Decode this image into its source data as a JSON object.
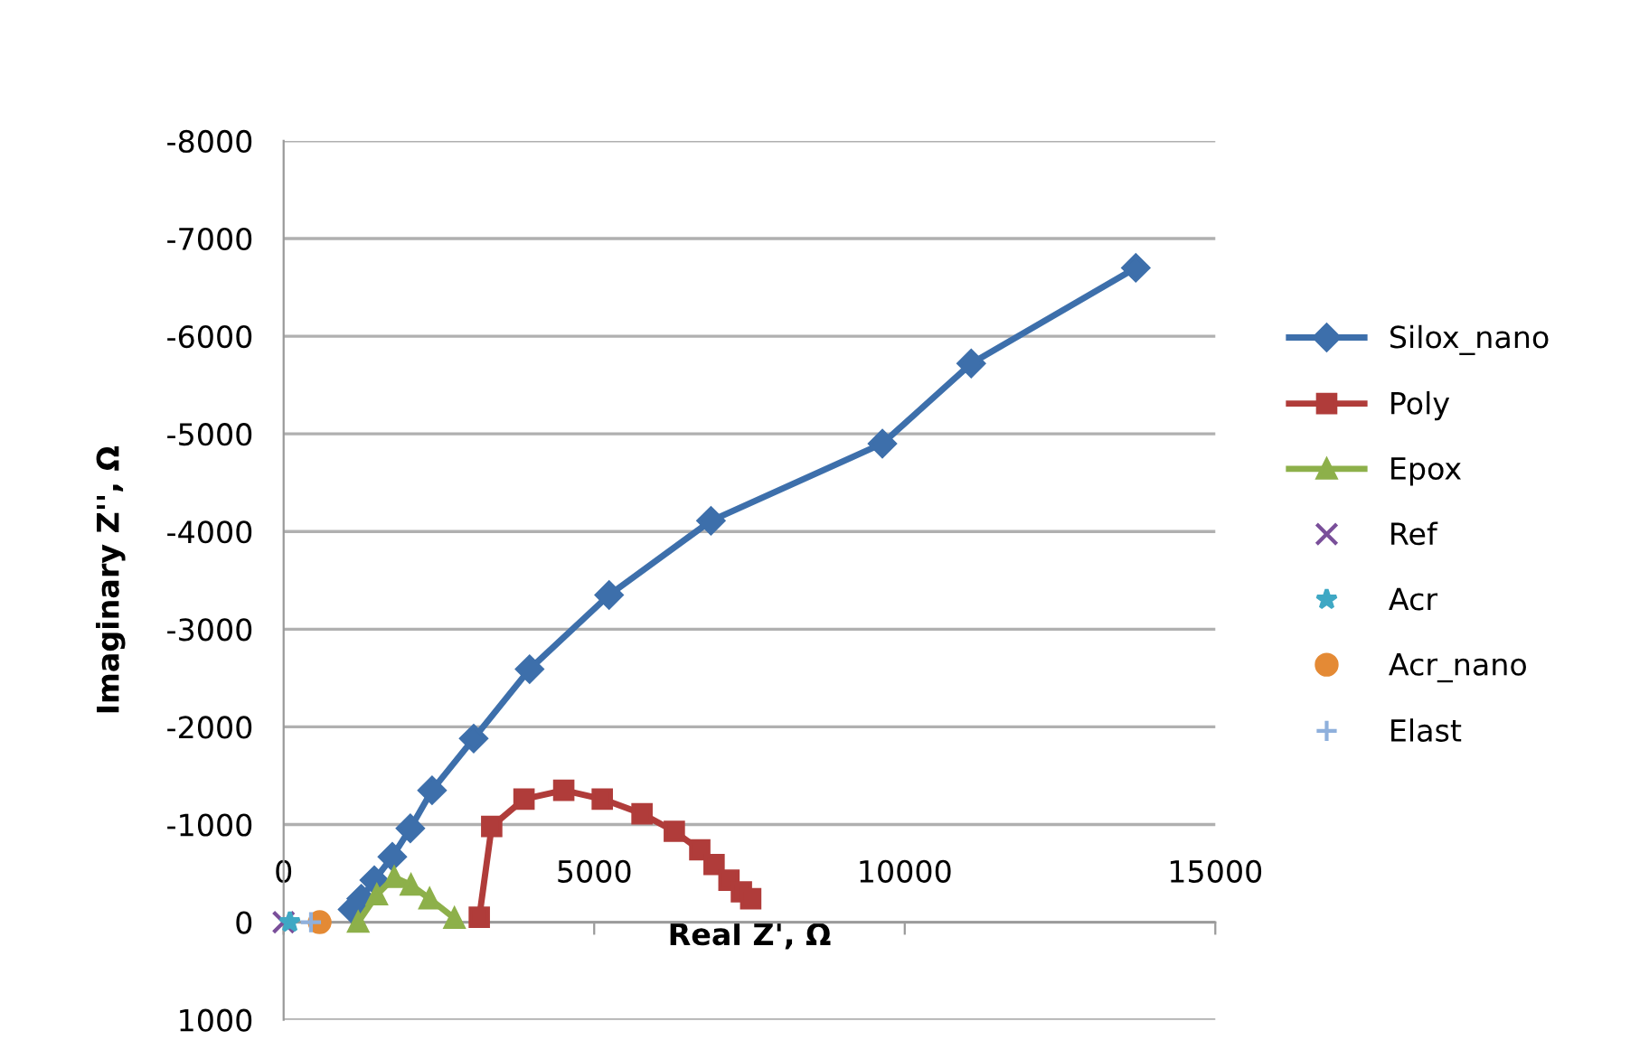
{
  "chart_data": {
    "type": "line",
    "xlabel": "Real Z', Ω",
    "ylabel": "Imaginary Z'', Ω",
    "xlim": [
      0,
      15000
    ],
    "xticks": [
      0,
      5000,
      10000,
      15000
    ],
    "ylim": [
      1000,
      -8000
    ],
    "yticks": [
      -8000,
      -7000,
      -6000,
      -5000,
      -4000,
      -3000,
      -2000,
      -1000,
      0,
      1000
    ],
    "grid": "y",
    "legend": "right",
    "series": [
      {
        "name": "Silox_nano",
        "color": "#3d6fab",
        "marker": "diamond",
        "x": [
          1110,
          1250,
          1460,
          1750,
          2040,
          2390,
          3060,
          3960,
          5240,
          6880,
          9640,
          11070,
          13720
        ],
        "values": [
          -130,
          -240,
          -430,
          -670,
          -960,
          -1350,
          -1880,
          -2590,
          -3350,
          -4110,
          -4900,
          -5720,
          -6700
        ]
      },
      {
        "name": "Poly",
        "color": "#b03c3a",
        "marker": "square",
        "x": [
          3150,
          3350,
          3870,
          4510,
          5130,
          5770,
          6290,
          6700,
          6930,
          7170,
          7370,
          7520
        ],
        "values": [
          -50,
          -980,
          -1260,
          -1350,
          -1260,
          -1110,
          -930,
          -740,
          -590,
          -430,
          -310,
          -240
        ]
      },
      {
        "name": "Epox",
        "color": "#8db04a",
        "marker": "triangle",
        "x": [
          1200,
          1500,
          1780,
          2050,
          2350,
          2750
        ],
        "values": [
          0,
          -280,
          -460,
          -380,
          -240,
          -40
        ]
      },
      {
        "name": "Ref",
        "type": "scatter",
        "color": "#7a4f9a",
        "marker": "cross",
        "x": [
          0
        ],
        "values": [
          0
        ]
      },
      {
        "name": "Acr",
        "type": "scatter",
        "color": "#3fa8c4",
        "marker": "star",
        "x": [
          100
        ],
        "values": [
          0
        ]
      },
      {
        "name": "Acr_nano",
        "type": "scatter",
        "color": "#e48a35",
        "marker": "circle",
        "x": [
          580
        ],
        "values": [
          0
        ]
      },
      {
        "name": "Elast",
        "type": "scatter",
        "color": "#8fb0dc",
        "marker": "plus",
        "x": [
          440
        ],
        "values": [
          0
        ]
      }
    ]
  }
}
